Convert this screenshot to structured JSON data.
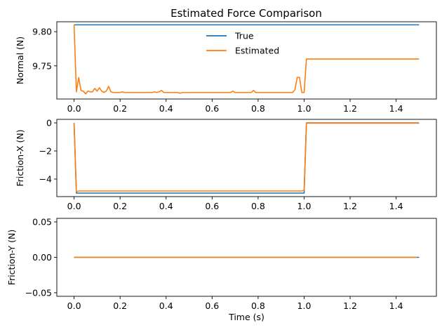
{
  "figure_title": "Estimated Force Comparison",
  "colors": {
    "true": "#1f77b4",
    "estimated": "#ff7f0e"
  },
  "chart_data": [
    {
      "type": "line",
      "title": "Estimated Force Comparison",
      "xlabel": "",
      "ylabel": "Normal (N)",
      "xlim": [
        -0.075,
        1.575
      ],
      "ylim": [
        9.7015,
        9.8145
      ],
      "xticks": [
        0.0,
        0.2,
        0.4,
        0.6,
        0.8,
        1.0,
        1.2,
        1.4
      ],
      "xtick_labels": [
        "0.0",
        "0.2",
        "0.4",
        "0.6",
        "0.8",
        "1.0",
        "1.2",
        "1.4"
      ],
      "yticks": [
        9.75,
        9.8
      ],
      "ytick_labels": [
        "9.75",
        "9.80"
      ],
      "legend": {
        "position": "top-center",
        "entries": [
          "True",
          "Estimated"
        ]
      },
      "series": [
        {
          "name": "True",
          "color": "#1f77b4",
          "x": [
            0.0,
            1.5
          ],
          "y": [
            9.81,
            9.81
          ]
        },
        {
          "name": "Estimated",
          "color": "#ff7f0e",
          "x": [
            0.0,
            0.01,
            0.02,
            0.03,
            0.04,
            0.05,
            0.06,
            0.07,
            0.08,
            0.09,
            0.1,
            0.11,
            0.12,
            0.13,
            0.14,
            0.15,
            0.16,
            0.17,
            0.18,
            0.2,
            0.21,
            0.22,
            0.3,
            0.33,
            0.34,
            0.35,
            0.36,
            0.37,
            0.38,
            0.39,
            0.4,
            0.45,
            0.46,
            0.47,
            0.68,
            0.69,
            0.7,
            0.71,
            0.77,
            0.78,
            0.79,
            0.95,
            0.96,
            0.97,
            0.98,
            0.99,
            1.0,
            1.01,
            1.5
          ],
          "y": [
            9.81,
            9.712,
            9.733,
            9.714,
            9.713,
            9.709,
            9.713,
            9.712,
            9.712,
            9.717,
            9.713,
            9.718,
            9.713,
            9.711,
            9.713,
            9.72,
            9.712,
            9.711,
            9.711,
            9.711,
            9.712,
            9.711,
            9.711,
            9.711,
            9.711,
            9.712,
            9.711,
            9.712,
            9.714,
            9.711,
            9.711,
            9.711,
            9.71,
            9.711,
            9.711,
            9.713,
            9.711,
            9.711,
            9.711,
            9.714,
            9.711,
            9.711,
            9.715,
            9.733,
            9.733,
            9.711,
            9.711,
            9.76,
            9.76
          ]
        }
      ]
    },
    {
      "type": "line",
      "title": "",
      "xlabel": "",
      "ylabel": "Friction-X (N)",
      "xlim": [
        -0.075,
        1.575
      ],
      "ylim": [
        -5.25,
        0.25
      ],
      "xticks": [
        0.0,
        0.2,
        0.4,
        0.6,
        0.8,
        1.0,
        1.2,
        1.4
      ],
      "xtick_labels": [
        "0.0",
        "0.2",
        "0.4",
        "0.6",
        "0.8",
        "1.0",
        "1.2",
        "1.4"
      ],
      "yticks": [
        -4,
        -2,
        0
      ],
      "ytick_labels": [
        "−4",
        "−2",
        "0"
      ],
      "series": [
        {
          "name": "True",
          "color": "#1f77b4",
          "x": [
            0.0,
            0.01,
            1.0,
            1.01,
            1.5
          ],
          "y": [
            0.0,
            -5.0,
            -5.0,
            0.0,
            0.0
          ]
        },
        {
          "name": "Estimated",
          "color": "#ff7f0e",
          "x": [
            0.0,
            0.01,
            0.02,
            0.99,
            1.0,
            1.01,
            1.5
          ],
          "y": [
            0.0,
            -4.9,
            -4.85,
            -4.85,
            -4.8,
            -0.02,
            -0.02
          ]
        }
      ]
    },
    {
      "type": "line",
      "title": "",
      "xlabel": "Time (s)",
      "ylabel": "Friction-Y (N)",
      "xlim": [
        -0.075,
        1.575
      ],
      "ylim": [
        -0.055,
        0.055
      ],
      "xticks": [
        0.0,
        0.2,
        0.4,
        0.6,
        0.8,
        1.0,
        1.2,
        1.4
      ],
      "xtick_labels": [
        "0.0",
        "0.2",
        "0.4",
        "0.6",
        "0.8",
        "1.0",
        "1.2",
        "1.4"
      ],
      "yticks": [
        -0.05,
        0.0,
        0.05
      ],
      "ytick_labels": [
        "−0.05",
        "0.00",
        "0.05"
      ],
      "series": [
        {
          "name": "True",
          "color": "#1f77b4",
          "x": [
            0.0,
            1.5
          ],
          "y": [
            0.0,
            0.0
          ]
        },
        {
          "name": "Estimated",
          "color": "#ff7f0e",
          "x": [
            0.0,
            1.49
          ],
          "y": [
            0.0,
            0.0
          ]
        }
      ]
    }
  ]
}
